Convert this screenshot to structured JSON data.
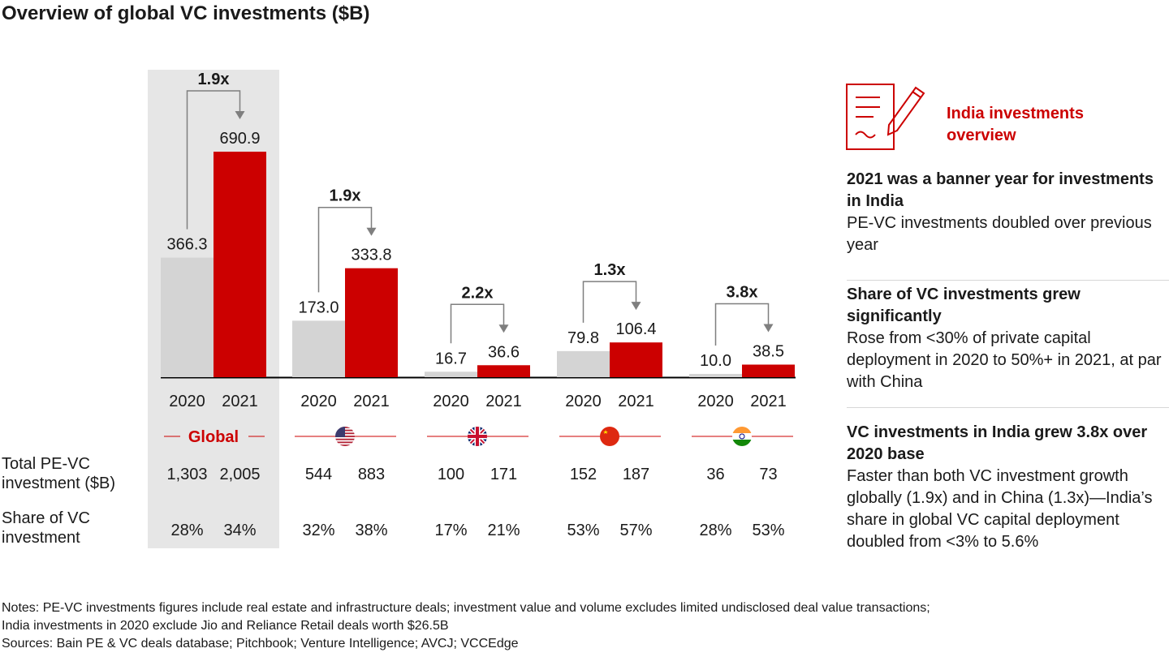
{
  "title": "Overview of global VC investments ($B)",
  "colors": {
    "prior_year": "#d4d4d4",
    "current_year": "#cc0000",
    "highlight_band": "#e6e6e6",
    "arrow": "#7f7f7f"
  },
  "chart_data": {
    "type": "bar",
    "title": "Overview of global VC investments ($B)",
    "groups": [
      {
        "label": "Global",
        "icon": "globe-label",
        "multiplier": "1.9x",
        "years": [
          "2020",
          "2021"
        ],
        "values": [
          366.3,
          690.9
        ],
        "value_labels": [
          "366.3",
          "690.9"
        ],
        "total_pe_vc": [
          "1,303",
          "2,005"
        ],
        "vc_share": [
          "28%",
          "34%"
        ]
      },
      {
        "label": "",
        "icon": "us-flag-icon",
        "multiplier": "1.9x",
        "years": [
          "2020",
          "2021"
        ],
        "values": [
          173.0,
          333.8
        ],
        "value_labels": [
          "173.0",
          "333.8"
        ],
        "total_pe_vc": [
          "544",
          "883"
        ],
        "vc_share": [
          "32%",
          "38%"
        ]
      },
      {
        "label": "",
        "icon": "uk-flag-icon",
        "multiplier": "2.2x",
        "years": [
          "2020",
          "2021"
        ],
        "values": [
          16.7,
          36.6
        ],
        "value_labels": [
          "16.7",
          "36.6"
        ],
        "total_pe_vc": [
          "100",
          "171"
        ],
        "vc_share": [
          "17%",
          "21%"
        ]
      },
      {
        "label": "",
        "icon": "china-flag-icon",
        "multiplier": "1.3x",
        "years": [
          "2020",
          "2021"
        ],
        "values": [
          79.8,
          106.4
        ],
        "value_labels": [
          "79.8",
          "106.4"
        ],
        "total_pe_vc": [
          "152",
          "187"
        ],
        "vc_share": [
          "53%",
          "57%"
        ]
      },
      {
        "label": "",
        "icon": "india-flag-icon",
        "multiplier": "3.8x",
        "years": [
          "2020",
          "2021"
        ],
        "values": [
          10.0,
          38.5
        ],
        "value_labels": [
          "10.0",
          "38.5"
        ],
        "total_pe_vc": [
          "36",
          "73"
        ],
        "vc_share": [
          "28%",
          "53%"
        ]
      }
    ],
    "row_labels": {
      "total": "Total PE-VC investment ($B)",
      "share": "Share of VC investment"
    },
    "ylim": [
      0,
      690.9
    ]
  },
  "sidebar": {
    "title": "India investments overview",
    "icon": "document-pen-icon",
    "sections": [
      {
        "heading": "2021 was a banner year for investments in India",
        "body": "PE-VC investments doubled over previous year"
      },
      {
        "heading": "Share of VC investments grew significantly",
        "body": "Rose from <30% of private capital deployment in 2020 to 50%+ in 2021, at par with China"
      },
      {
        "heading": "VC investments in India grew 3.8x over 2020 base",
        "body": "Faster than both VC investment growth globally (1.9x) and in China (1.3x)—India’s share in global VC capital deployment doubled from <3% to 5.6%"
      }
    ]
  },
  "notes": [
    "Notes: PE-VC investments figures include real estate and infrastructure deals; investment value and volume excludes limited undisclosed deal value transactions;",
    "India investments in 2020 exclude Jio and Reliance Retail deals worth $26.5B",
    "Sources: Bain PE & VC deals database; Pitchbook; Venture Intelligence; AVCJ; VCCEdge"
  ]
}
